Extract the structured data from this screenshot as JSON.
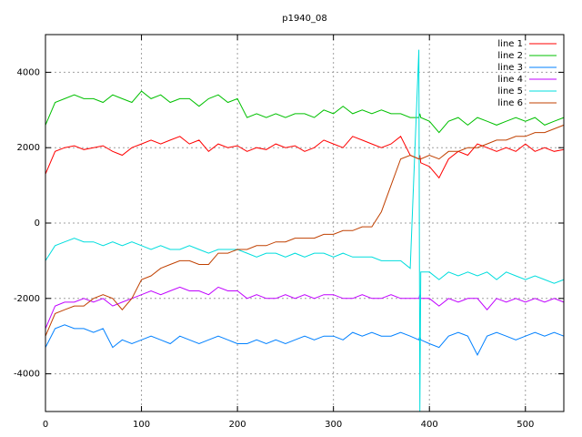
{
  "chart_data": {
    "type": "line",
    "title": "p1940_08",
    "x": [
      0,
      10,
      20,
      30,
      40,
      50,
      60,
      70,
      80,
      90,
      100,
      110,
      120,
      130,
      140,
      150,
      160,
      170,
      180,
      190,
      200,
      210,
      220,
      230,
      240,
      250,
      260,
      270,
      280,
      290,
      300,
      310,
      320,
      330,
      340,
      350,
      360,
      370,
      380,
      389,
      390,
      391,
      400,
      410,
      420,
      430,
      440,
      450,
      460,
      470,
      480,
      490,
      500,
      510,
      520,
      530,
      540
    ],
    "xlim": [
      0,
      540
    ],
    "xticks": [
      0,
      100,
      200,
      300,
      400,
      500
    ],
    "ylim": [
      -5000,
      5000
    ],
    "yticks": [
      -4000,
      -2000,
      0,
      2000,
      4000
    ],
    "grid": true,
    "legend": "top-right",
    "series": [
      {
        "name": "line 1",
        "color": "#ff0000",
        "values": [
          1300,
          1900,
          2000,
          2050,
          1950,
          2000,
          2050,
          1900,
          1800,
          2000,
          2100,
          2200,
          2100,
          2200,
          2300,
          2100,
          2200,
          1900,
          2100,
          2000,
          2050,
          1900,
          2000,
          1950,
          2100,
          2000,
          2050,
          1900,
          2000,
          2200,
          2100,
          2000,
          2300,
          2200,
          2100,
          2000,
          2100,
          2300,
          1800,
          1700,
          1800,
          1600,
          1500,
          1200,
          1700,
          1900,
          1800,
          2100,
          2000,
          1900,
          2000,
          1900,
          2100,
          1900,
          2000,
          1900,
          1950
        ]
      },
      {
        "name": "line 2",
        "color": "#00c000",
        "values": [
          2600,
          3200,
          3300,
          3400,
          3300,
          3300,
          3200,
          3400,
          3300,
          3200,
          3500,
          3300,
          3400,
          3200,
          3300,
          3300,
          3100,
          3300,
          3400,
          3200,
          3300,
          2800,
          2900,
          2800,
          2900,
          2800,
          2900,
          2900,
          2800,
          3000,
          2900,
          3100,
          2900,
          3000,
          2900,
          3000,
          2900,
          2900,
          2800,
          2800,
          2900,
          2800,
          2700,
          2400,
          2700,
          2800,
          2600,
          2800,
          2700,
          2600,
          2700,
          2800,
          2700,
          2800,
          2600,
          2700,
          2800
        ]
      },
      {
        "name": "line 3",
        "color": "#0080ff",
        "values": [
          -3300,
          -2800,
          -2700,
          -2800,
          -2800,
          -2900,
          -2800,
          -3300,
          -3100,
          -3200,
          -3100,
          -3000,
          -3100,
          -3200,
          -3000,
          -3100,
          -3200,
          -3100,
          -3000,
          -3100,
          -3200,
          -3200,
          -3100,
          -3200,
          -3100,
          -3200,
          -3100,
          -3000,
          -3100,
          -3000,
          -3000,
          -3100,
          -2900,
          -3000,
          -2900,
          -3000,
          -3000,
          -2900,
          -3000,
          -3100,
          -3000,
          -3100,
          -3200,
          -3300,
          -3000,
          -2900,
          -3000,
          -3500,
          -3000,
          -2900,
          -3000,
          -3100,
          -3000,
          -2900,
          -3000,
          -2900,
          -3000
        ]
      },
      {
        "name": "line 4",
        "color": "#c000ff",
        "values": [
          -2800,
          -2200,
          -2100,
          -2100,
          -2000,
          -2100,
          -2000,
          -2200,
          -2100,
          -2000,
          -1900,
          -1800,
          -1900,
          -1800,
          -1700,
          -1800,
          -1800,
          -1900,
          -1700,
          -1800,
          -1800,
          -2000,
          -1900,
          -2000,
          -2000,
          -1900,
          -2000,
          -1900,
          -2000,
          -1900,
          -1900,
          -2000,
          -2000,
          -1900,
          -2000,
          -2000,
          -1900,
          -2000,
          -2000,
          -2000,
          -1900,
          -2000,
          -2000,
          -2200,
          -2000,
          -2100,
          -2000,
          -2000,
          -2300,
          -2000,
          -2100,
          -2000,
          -2100,
          -2000,
          -2100,
          -2000,
          -2100
        ]
      },
      {
        "name": "line 5",
        "color": "#00dddd",
        "values": [
          -1000,
          -600,
          -500,
          -400,
          -500,
          -500,
          -600,
          -500,
          -600,
          -500,
          -600,
          -700,
          -600,
          -700,
          -700,
          -600,
          -700,
          -800,
          -700,
          -700,
          -700,
          -800,
          -900,
          -800,
          -800,
          -900,
          -800,
          -900,
          -800,
          -800,
          -900,
          -800,
          -900,
          -900,
          -900,
          -1000,
          -1000,
          -1000,
          -1200,
          4600,
          -5000,
          -1300,
          -1300,
          -1500,
          -1300,
          -1400,
          -1300,
          -1400,
          -1300,
          -1500,
          -1300,
          -1400,
          -1500,
          -1400,
          -1500,
          -1600,
          -1500
        ]
      },
      {
        "name": "line 6",
        "color": "#c04000",
        "values": [
          -3000,
          -2400,
          -2300,
          -2200,
          -2200,
          -2000,
          -1900,
          -2000,
          -2300,
          -2000,
          -1500,
          -1400,
          -1200,
          -1100,
          -1000,
          -1000,
          -1100,
          -1100,
          -800,
          -800,
          -700,
          -700,
          -600,
          -600,
          -500,
          -500,
          -400,
          -400,
          -400,
          -300,
          -300,
          -200,
          -200,
          -100,
          -100,
          300,
          1000,
          1700,
          1800,
          1700,
          1700,
          1700,
          1800,
          1700,
          1900,
          1900,
          2000,
          2000,
          2100,
          2200,
          2200,
          2300,
          2300,
          2400,
          2400,
          2500,
          2600
        ]
      }
    ]
  }
}
